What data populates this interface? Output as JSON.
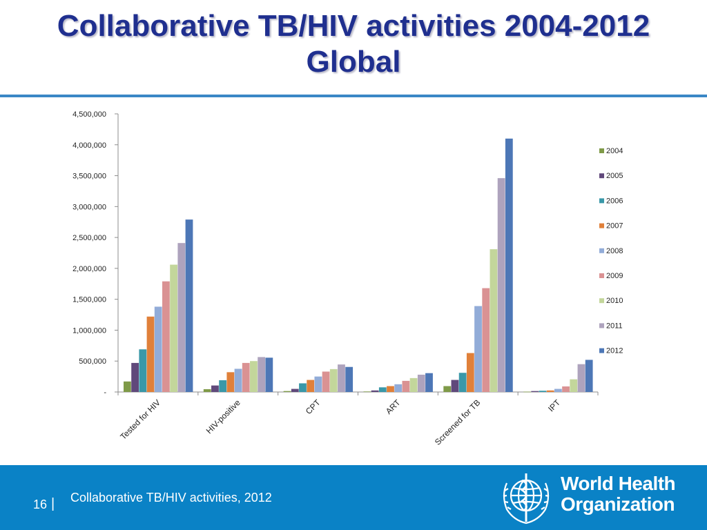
{
  "slide": {
    "title_line1": "Collaborative TB/HIV activities 2004-2012",
    "title_line2": "Global"
  },
  "footer": {
    "page_number": "16",
    "separator": "|",
    "text": "Collaborative TB/HIV activities, 2012",
    "logo_line1": "World Health",
    "logo_line2": "Organization"
  },
  "colors": {
    "title": "#1f2f8f",
    "rule": "#3a87c6",
    "footer_bg": "#0a82c6"
  },
  "chart_data": {
    "type": "bar",
    "title": "",
    "xlabel": "",
    "ylabel": "",
    "ylim": [
      0,
      4500000
    ],
    "y_ticks": [
      {
        "value": 0,
        "label": "-"
      },
      {
        "value": 500000,
        "label": "500,000"
      },
      {
        "value": 1000000,
        "label": "1,000,000"
      },
      {
        "value": 1500000,
        "label": "1,500,000"
      },
      {
        "value": 2000000,
        "label": "2,000,000"
      },
      {
        "value": 2500000,
        "label": "2,500,000"
      },
      {
        "value": 3000000,
        "label": "3,000,000"
      },
      {
        "value": 3500000,
        "label": "3,500,000"
      },
      {
        "value": 4000000,
        "label": "4,000,000"
      },
      {
        "value": 4500000,
        "label": "4,500,000"
      }
    ],
    "grid": false,
    "legend_position": "right",
    "categories": [
      "Tested for HIV",
      "HIV-positive",
      "CPT",
      "ART",
      "Screened for TB",
      "IPT"
    ],
    "series": [
      {
        "name": "2004",
        "color": "#7f9a48",
        "values": [
          170000,
          45000,
          15000,
          8000,
          95000,
          5000
        ]
      },
      {
        "name": "2005",
        "color": "#60497b",
        "values": [
          470000,
          105000,
          50000,
          25000,
          195000,
          15000
        ]
      },
      {
        "name": "2006",
        "color": "#3a98a8",
        "values": [
          690000,
          190000,
          140000,
          75000,
          310000,
          20000
        ]
      },
      {
        "name": "2007",
        "color": "#e0803a",
        "values": [
          1220000,
          320000,
          195000,
          95000,
          630000,
          25000
        ]
      },
      {
        "name": "2008",
        "color": "#92acd8",
        "values": [
          1380000,
          375000,
          250000,
          125000,
          1390000,
          50000
        ]
      },
      {
        "name": "2009",
        "color": "#da9293",
        "values": [
          1790000,
          470000,
          330000,
          180000,
          1680000,
          90000
        ]
      },
      {
        "name": "2010",
        "color": "#c3d69b",
        "values": [
          2060000,
          500000,
          370000,
          225000,
          2310000,
          205000
        ]
      },
      {
        "name": "2011",
        "color": "#aea3bd",
        "values": [
          2410000,
          565000,
          445000,
          280000,
          3460000,
          450000
        ]
      },
      {
        "name": "2012",
        "color": "#4d77b6",
        "values": [
          2790000,
          555000,
          405000,
          305000,
          4100000,
          520000
        ]
      }
    ]
  }
}
